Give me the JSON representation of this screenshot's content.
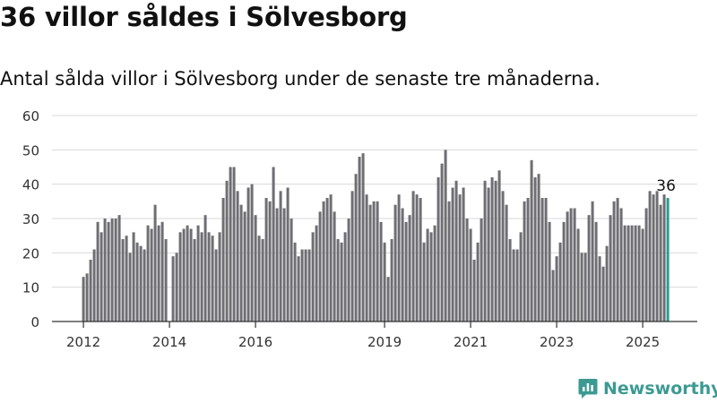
{
  "header": {
    "title": "36 villor såldes i Sölvesborg",
    "subtitle": "Antal sålda villor i Sölvesborg under de senaste tre månaderna."
  },
  "brand": {
    "name": "Newsworthy",
    "icon": "newsworthy-logo-icon",
    "color": "#3c9a93"
  },
  "chart_data": {
    "type": "bar",
    "x_start": "2012-01",
    "interval": "month",
    "xticks": [
      "2012",
      "2014",
      "2016",
      "2019",
      "2021",
      "2023",
      "2025"
    ],
    "yticks": [
      0,
      10,
      20,
      30,
      40,
      50,
      60
    ],
    "ylim": [
      0,
      60
    ],
    "grid": true,
    "bar_color": "#6e6e73",
    "highlight_color": "#2a9d8f",
    "highlight_label": "36",
    "values": [
      13,
      14,
      18,
      21,
      29,
      26,
      30,
      29,
      30,
      30,
      31,
      24,
      25,
      20,
      26,
      23,
      22,
      21,
      28,
      27,
      34,
      28,
      29,
      24,
      null,
      19,
      20,
      26,
      27,
      28,
      27,
      24,
      28,
      26,
      31,
      26,
      25,
      21,
      26,
      36,
      41,
      45,
      45,
      38,
      34,
      32,
      39,
      40,
      31,
      25,
      24,
      36,
      35,
      45,
      33,
      38,
      33,
      39,
      30,
      23,
      19,
      21,
      21,
      21,
      26,
      28,
      32,
      35,
      36,
      37,
      32,
      24,
      23,
      26,
      30,
      38,
      43,
      48,
      49,
      37,
      34,
      35,
      35,
      29,
      23,
      13,
      24,
      34,
      37,
      33,
      29,
      31,
      38,
      37,
      36,
      23,
      27,
      26,
      28,
      42,
      46,
      50,
      35,
      39,
      41,
      37,
      39,
      30,
      27,
      18,
      23,
      30,
      41,
      39,
      42,
      41,
      44,
      38,
      34,
      24,
      21,
      21,
      26,
      35,
      36,
      47,
      42,
      43,
      36,
      36,
      29,
      15,
      19,
      23,
      29,
      32,
      33,
      33,
      27,
      20,
      20,
      31,
      35,
      29,
      19,
      16,
      22,
      31,
      35,
      36,
      33,
      28,
      28,
      28,
      28,
      28,
      27,
      33,
      38,
      37,
      38,
      34,
      37,
      36
    ]
  }
}
